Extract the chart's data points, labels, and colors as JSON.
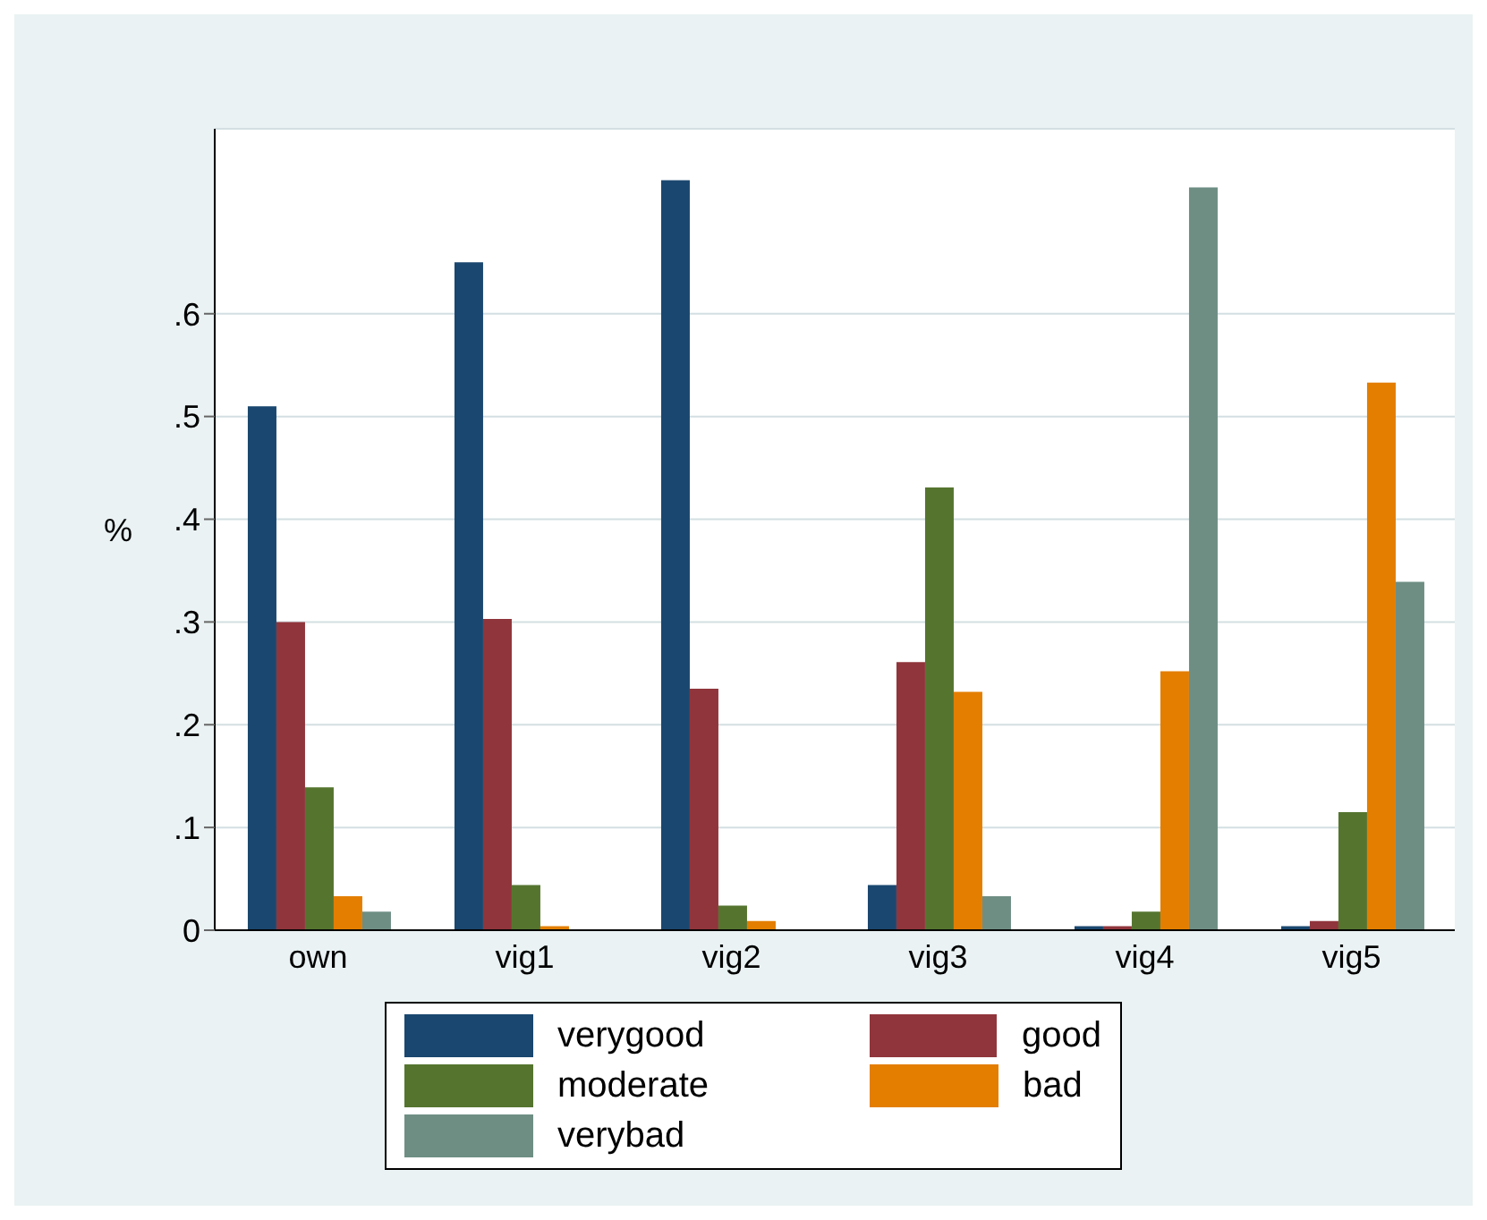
{
  "chart_data": {
    "type": "bar",
    "ylabel": "%",
    "categories": [
      "own",
      "vig1",
      "vig2",
      "vig3",
      "vig4",
      "vig5"
    ],
    "series": [
      {
        "name": "verygood",
        "color": "#1a476f",
        "values": [
          0.51,
          0.65,
          0.73,
          0.044,
          0.004,
          0.004
        ]
      },
      {
        "name": "good",
        "color": "#90353b",
        "values": [
          0.3,
          0.303,
          0.235,
          0.261,
          0.004,
          0.009
        ]
      },
      {
        "name": "moderate",
        "color": "#55752f",
        "values": [
          0.139,
          0.044,
          0.024,
          0.431,
          0.018,
          0.115
        ]
      },
      {
        "name": "bad",
        "color": "#e37e00",
        "values": [
          0.033,
          0.004,
          0.009,
          0.232,
          0.252,
          0.533
        ]
      },
      {
        "name": "verybad",
        "color": "#6e8e84",
        "values": [
          0.018,
          0,
          0,
          0.033,
          0.723,
          0.339
        ]
      }
    ],
    "ylim": [
      0,
      0.78
    ],
    "yticks": [
      {
        "value": 0,
        "label": "0"
      },
      {
        "value": 0.1,
        "label": ".1"
      },
      {
        "value": 0.2,
        "label": ".2"
      },
      {
        "value": 0.3,
        "label": ".3"
      },
      {
        "value": 0.4,
        "label": ".4"
      },
      {
        "value": 0.5,
        "label": ".5"
      },
      {
        "value": 0.6,
        "label": ".6"
      }
    ],
    "grid": "y",
    "legend": "bottom"
  }
}
